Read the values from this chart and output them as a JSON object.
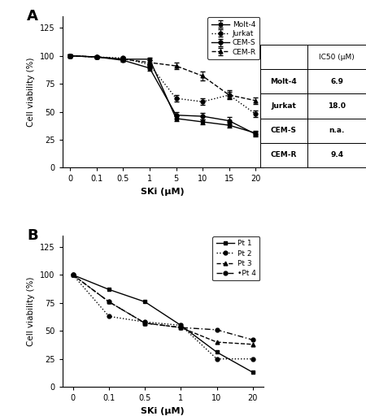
{
  "panel_A": {
    "x_positions": [
      0,
      1,
      2,
      3,
      4,
      5,
      6,
      7
    ],
    "x_labels": [
      "0",
      "0.1",
      "0.5",
      "1",
      "5",
      "10",
      "15",
      "20"
    ],
    "molt4": [
      100,
      99,
      97,
      97,
      44,
      41,
      38,
      31
    ],
    "molt4_err": [
      1,
      1,
      1,
      1,
      2,
      2,
      2,
      2
    ],
    "jurkat": [
      100,
      99,
      98,
      92,
      62,
      59,
      65,
      48
    ],
    "jurkat_err": [
      1,
      1,
      1,
      2,
      3,
      3,
      4,
      3
    ],
    "cems": [
      100,
      99,
      96,
      89,
      47,
      46,
      42,
      30
    ],
    "cems_err": [
      1,
      1,
      1,
      2,
      3,
      3,
      3,
      2
    ],
    "cemr": [
      100,
      99,
      97,
      94,
      91,
      82,
      65,
      60
    ],
    "cemr_err": [
      1,
      1,
      1,
      2,
      3,
      4,
      3,
      3
    ],
    "ylim": [
      0,
      135
    ],
    "yticks": [
      0,
      25,
      50,
      75,
      100,
      125
    ],
    "xlabel": "SKi (μM)",
    "ylabel": "Cell viability (%)",
    "ic50_labels": [
      "Molt-4",
      "Jurkat",
      "CEM-S",
      "CEM-R"
    ],
    "ic50_values": [
      "6.9",
      "18.0",
      "n.a.",
      "9.4"
    ],
    "ic50_header": "IC50 (μM)"
  },
  "panel_B": {
    "x_positions": [
      0,
      1,
      2,
      3,
      4,
      5
    ],
    "x_labels": [
      "0",
      "0.1",
      "0.5",
      "1",
      "10",
      "20"
    ],
    "pt1": [
      100,
      87,
      76,
      55,
      31,
      13
    ],
    "pt2": [
      100,
      63,
      58,
      55,
      25,
      25
    ],
    "pt3": [
      100,
      76,
      57,
      53,
      40,
      38
    ],
    "pt4": [
      100,
      76,
      57,
      53,
      51,
      42
    ],
    "ylim": [
      0,
      135
    ],
    "yticks": [
      0,
      25,
      50,
      75,
      100,
      125
    ],
    "xlabel": "SKi (μM)",
    "ylabel": "Cell viability (%)"
  }
}
